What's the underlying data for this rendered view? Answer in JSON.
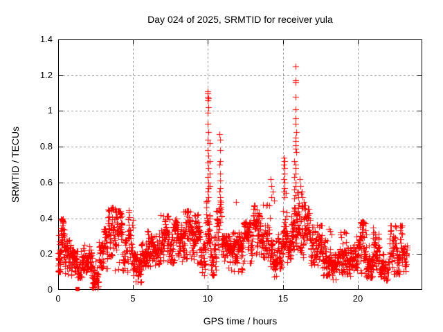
{
  "chart": {
    "title": "Day 024 of 2025, SRMTID for receiver yula",
    "xlabel": "GPS time / hours",
    "ylabel": "SRMTID / TECUs"
  },
  "colors": {
    "marker": "#ff0000",
    "grid": "#9e9e9e",
    "axis": "#000000",
    "background": "#ffffff",
    "text": "#000000"
  },
  "chart_data": {
    "type": "scatter",
    "title": "Day 024 of 2025, SRMTID for receiver yula",
    "xlabel": "GPS time / hours",
    "ylabel": "SRMTID / TECUs",
    "xlim": [
      0,
      24.3
    ],
    "ylim": [
      0,
      1.4
    ],
    "xticks": [
      0,
      5,
      10,
      15,
      20
    ],
    "xtick_labels": [
      "0",
      "5",
      "10",
      "15",
      "20"
    ],
    "yticks": [
      0,
      0.2,
      0.4,
      0.6,
      0.8,
      1,
      1.2,
      1.4
    ],
    "ytick_labels": [
      "0",
      "0.2",
      "0.4",
      "0.6",
      "0.8",
      "1",
      "1.2",
      "1.4"
    ],
    "grid": true,
    "legend": "none",
    "marker": "plus",
    "marker_color": "#ff0000",
    "square_marker_point": [
      1.3,
      0.005
    ],
    "spike_points": [
      [
        9.98,
        1.11
      ],
      [
        10.0,
        1.1
      ],
      [
        9.99,
        1.08
      ],
      [
        10.02,
        1.07
      ],
      [
        10.0,
        1.06
      ],
      [
        10.01,
        1.02
      ],
      [
        9.99,
        0.99
      ],
      [
        10.0,
        0.93
      ],
      [
        10.01,
        0.88
      ],
      [
        9.98,
        0.84
      ],
      [
        10.12,
        0.82
      ],
      [
        10.0,
        0.78
      ],
      [
        10.01,
        0.75
      ],
      [
        10.13,
        0.72
      ],
      [
        10.0,
        0.71
      ],
      [
        10.02,
        0.68
      ],
      [
        10.12,
        0.65
      ],
      [
        10.0,
        0.63
      ],
      [
        10.01,
        0.6
      ],
      [
        10.13,
        0.58
      ],
      [
        10.02,
        0.57
      ],
      [
        10.0,
        0.55
      ],
      [
        10.01,
        0.52
      ],
      [
        9.99,
        0.5
      ],
      [
        10.78,
        0.87
      ],
      [
        10.8,
        0.84
      ],
      [
        10.79,
        0.78
      ],
      [
        10.8,
        0.72
      ],
      [
        10.78,
        0.7
      ],
      [
        10.81,
        0.65
      ],
      [
        10.79,
        0.61
      ],
      [
        10.8,
        0.57
      ],
      [
        10.78,
        0.55
      ],
      [
        10.8,
        0.52
      ],
      [
        10.79,
        0.48
      ],
      [
        11.85,
        0.49
      ],
      [
        14.18,
        0.62
      ],
      [
        14.25,
        0.58
      ],
      [
        14.32,
        0.55
      ],
      [
        14.22,
        0.52
      ],
      [
        14.4,
        0.5
      ],
      [
        15.08,
        0.74
      ],
      [
        15.1,
        0.72
      ],
      [
        15.07,
        0.7
      ],
      [
        15.11,
        0.68
      ],
      [
        15.09,
        0.65
      ],
      [
        15.08,
        0.62
      ],
      [
        15.1,
        0.6
      ],
      [
        15.09,
        0.57
      ],
      [
        15.07,
        0.55
      ],
      [
        15.1,
        0.52
      ],
      [
        15.85,
        1.25
      ],
      [
        15.86,
        1.17
      ],
      [
        15.84,
        1.16
      ],
      [
        15.85,
        1.08
      ],
      [
        15.86,
        1.01
      ],
      [
        15.85,
        0.96
      ],
      [
        15.84,
        0.93
      ],
      [
        15.87,
        0.88
      ],
      [
        15.85,
        0.85
      ],
      [
        15.86,
        0.83
      ],
      [
        15.84,
        0.81
      ],
      [
        15.85,
        0.79
      ],
      [
        15.87,
        0.77
      ],
      [
        15.75,
        0.72
      ],
      [
        15.86,
        0.7
      ],
      [
        15.84,
        0.68
      ],
      [
        15.85,
        0.65
      ],
      [
        15.76,
        0.63
      ],
      [
        15.86,
        0.6
      ],
      [
        15.85,
        0.58
      ],
      [
        15.74,
        0.56
      ],
      [
        15.84,
        0.53
      ],
      [
        15.75,
        0.51
      ],
      [
        16.1,
        0.62
      ],
      [
        16.18,
        0.58
      ],
      [
        16.25,
        0.55
      ],
      [
        16.33,
        0.52
      ],
      [
        16.4,
        0.49
      ],
      [
        16.45,
        0.47
      ],
      [
        18.05,
        0.34
      ],
      [
        18.15,
        0.33
      ],
      [
        18.25,
        0.31
      ]
    ],
    "band_segments": {
      "format": [
        "t_start_h",
        "t_end_h",
        "value_min",
        "value_max",
        "n_points"
      ],
      "segments": [
        [
          0.0,
          0.15,
          0.1,
          0.31,
          25
        ],
        [
          0.15,
          0.45,
          0.14,
          0.4,
          40
        ],
        [
          0.45,
          0.9,
          0.08,
          0.28,
          48
        ],
        [
          0.9,
          1.6,
          0.07,
          0.22,
          70
        ],
        [
          1.6,
          2.25,
          0.1,
          0.25,
          65
        ],
        [
          2.25,
          2.7,
          0.01,
          0.16,
          45
        ],
        [
          2.7,
          3.3,
          0.12,
          0.34,
          60
        ],
        [
          3.3,
          3.8,
          0.18,
          0.46,
          52
        ],
        [
          3.8,
          4.3,
          0.1,
          0.44,
          50
        ],
        [
          4.3,
          4.65,
          0.1,
          0.28,
          35
        ],
        [
          4.65,
          5.0,
          0.14,
          0.45,
          35
        ],
        [
          5.0,
          5.55,
          0.04,
          0.2,
          55
        ],
        [
          5.55,
          6.1,
          0.13,
          0.33,
          55
        ],
        [
          6.1,
          6.75,
          0.1,
          0.3,
          62
        ],
        [
          6.75,
          7.4,
          0.16,
          0.42,
          65
        ],
        [
          7.4,
          8.3,
          0.15,
          0.4,
          90
        ],
        [
          8.3,
          9.05,
          0.17,
          0.44,
          75
        ],
        [
          9.05,
          9.5,
          0.14,
          0.42,
          48
        ],
        [
          9.5,
          9.85,
          0.07,
          0.26,
          36
        ],
        [
          9.85,
          10.15,
          0.26,
          0.5,
          40
        ],
        [
          10.15,
          10.55,
          0.08,
          0.3,
          40
        ],
        [
          10.55,
          10.9,
          0.22,
          0.5,
          32
        ],
        [
          10.9,
          11.5,
          0.12,
          0.3,
          58
        ],
        [
          11.5,
          12.3,
          0.1,
          0.32,
          78
        ],
        [
          12.3,
          13.0,
          0.15,
          0.38,
          68
        ],
        [
          13.0,
          13.6,
          0.2,
          0.47,
          60
        ],
        [
          13.6,
          14.15,
          0.18,
          0.48,
          52
        ],
        [
          14.15,
          14.6,
          0.07,
          0.28,
          42
        ],
        [
          14.6,
          15.0,
          0.12,
          0.32,
          40
        ],
        [
          15.0,
          15.25,
          0.24,
          0.55,
          32
        ],
        [
          15.25,
          15.55,
          0.14,
          0.35,
          30
        ],
        [
          15.55,
          16.25,
          0.22,
          0.55,
          85
        ],
        [
          16.25,
          16.8,
          0.18,
          0.47,
          52
        ],
        [
          16.8,
          17.3,
          0.14,
          0.42,
          46
        ],
        [
          17.3,
          17.6,
          0.14,
          0.36,
          28
        ],
        [
          17.6,
          18.3,
          0.08,
          0.28,
          68
        ],
        [
          18.3,
          18.75,
          0.05,
          0.2,
          44
        ],
        [
          18.75,
          19.25,
          0.09,
          0.33,
          50
        ],
        [
          19.25,
          19.75,
          0.07,
          0.24,
          50
        ],
        [
          19.75,
          20.15,
          0.11,
          0.3,
          40
        ],
        [
          20.15,
          20.55,
          0.09,
          0.38,
          42
        ],
        [
          20.55,
          21.0,
          0.07,
          0.25,
          45
        ],
        [
          21.0,
          21.45,
          0.11,
          0.35,
          45
        ],
        [
          21.45,
          22.1,
          0.05,
          0.2,
          60
        ],
        [
          22.1,
          22.95,
          0.09,
          0.36,
          80
        ],
        [
          22.95,
          23.3,
          0.1,
          0.25,
          35
        ]
      ]
    }
  }
}
